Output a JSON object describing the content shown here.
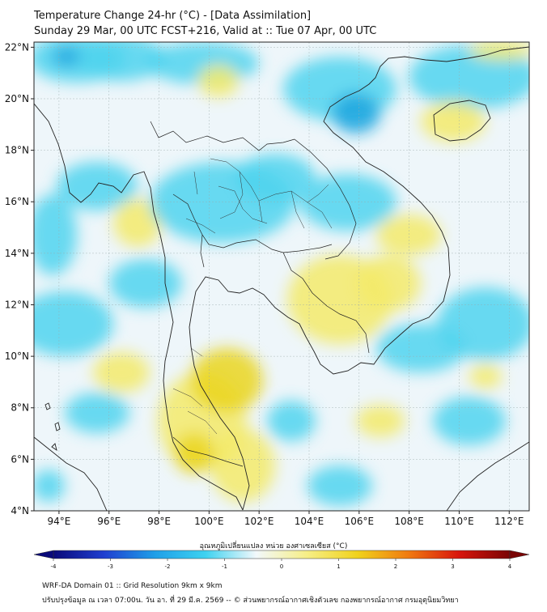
{
  "header": {
    "title_line1": "Temperature Change 24-hr (°C) - [Data Assimilation]",
    "title_line2": "Sunday 29 Mar, 00 UTC FCST+216, Valid at :: Tue 07 Apr, 00 UTC"
  },
  "map": {
    "extent": {
      "lon": [
        93,
        112.8
      ],
      "lat": [
        4,
        22.2
      ]
    },
    "lat_ticks": [
      {
        "value": 4,
        "label": "4°N"
      },
      {
        "value": 6,
        "label": "6°N"
      },
      {
        "value": 8,
        "label": "8°N"
      },
      {
        "value": 10,
        "label": "10°N"
      },
      {
        "value": 12,
        "label": "12°N"
      },
      {
        "value": 14,
        "label": "14°N"
      },
      {
        "value": 16,
        "label": "16°N"
      },
      {
        "value": 18,
        "label": "18°N"
      },
      {
        "value": 20,
        "label": "20°N"
      },
      {
        "value": 22,
        "label": "22°N"
      }
    ],
    "lon_ticks": [
      {
        "value": 94,
        "label": "94°E"
      },
      {
        "value": 96,
        "label": "96°E"
      },
      {
        "value": 98,
        "label": "98°E"
      },
      {
        "value": 100,
        "label": "100°E"
      },
      {
        "value": 102,
        "label": "102°E"
      },
      {
        "value": 104,
        "label": "104°E"
      },
      {
        "value": 106,
        "label": "106°E"
      },
      {
        "value": 108,
        "label": "108°E"
      },
      {
        "value": 110,
        "label": "110°E"
      },
      {
        "value": 112,
        "label": "112°E"
      }
    ],
    "field_colors": {
      "background": "#eef6fa",
      "cool": "#4fd3ee",
      "cool_strong": "#1aa5df",
      "warm": "#f3ea6a",
      "warm_strong": "#ead51f"
    }
  },
  "colorbar": {
    "label": "อุณหภูมิเปลี่ยนแปลง หน่วย องศาเซลเซียส (°C)",
    "min": -4,
    "max": 4,
    "ticks": [
      {
        "value": -4,
        "label": "-4"
      },
      {
        "value": -3,
        "label": "-3"
      },
      {
        "value": -2,
        "label": "-2"
      },
      {
        "value": -1,
        "label": "-1"
      },
      {
        "value": 0,
        "label": "0"
      },
      {
        "value": 1,
        "label": "1"
      },
      {
        "value": 2,
        "label": "2"
      },
      {
        "value": 3,
        "label": "3"
      },
      {
        "value": 4,
        "label": "4"
      }
    ],
    "colors": [
      "#0a0a7a",
      "#1f3fd0",
      "#1f9fe8",
      "#3ed2f0",
      "#f2f8fb",
      "#f6ee86",
      "#f0d21c",
      "#f07a10",
      "#d8150c",
      "#7a0505"
    ]
  },
  "footer": {
    "line1": "WRF-DA Domain 01 :: Grid Resolution 9km x 9km",
    "line2": "ปรับปรุงข้อมูล ณ เวลา 07:00น. วัน อา. ที่ 29 มี.ค. 2569 -- © ส่วนพยากรณ์อากาศเชิงตัวเลข กองพยากรณ์อากาศ กรมอุตุนิยมวิทยา"
  }
}
